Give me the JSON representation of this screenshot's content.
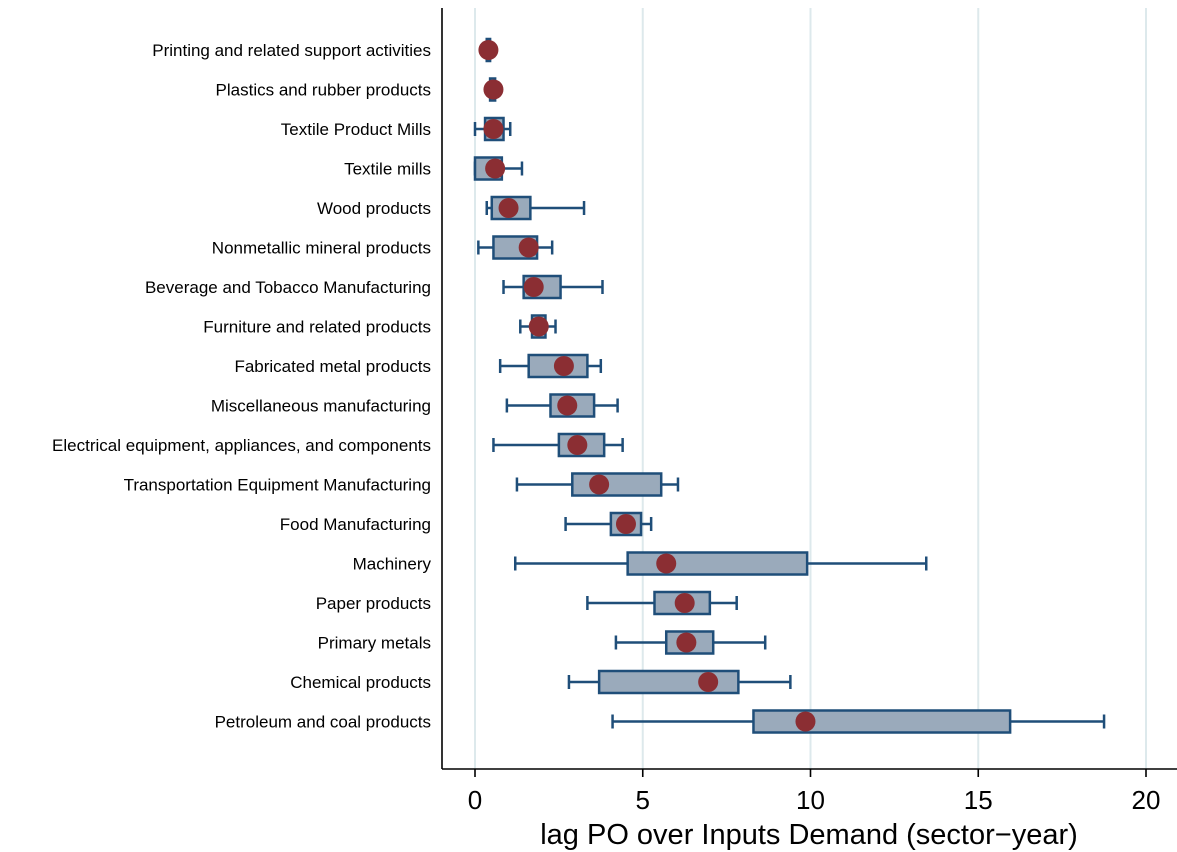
{
  "chart_data": {
    "type": "box",
    "title": "",
    "xlabel": "lag PO over Inputs Demand (sector−year)",
    "ylabel": "",
    "xlim": [
      -1,
      21
    ],
    "xticks": [
      "0",
      "5",
      "10",
      "15",
      "20"
    ],
    "grid": "vertical",
    "legend": "none",
    "colors": {
      "box_fill": "#9aaabb",
      "box_stroke": "#1f4e79",
      "whisker": "#1f4e79",
      "mean_marker": "#8b2e33",
      "grid": "#dde9ec"
    },
    "categories": [
      "Printing and related support activities",
      "Plastics and rubber products",
      "Textile Product Mills",
      "Textile mills",
      "Wood products",
      "Nonmetallic mineral products",
      "Beverage and Tobacco Manufacturing",
      "Furniture and related products",
      "Fabricated metal products",
      "Miscellaneous manufacturing",
      "Electrical equipment, appliances, and components",
      "Transportation Equipment Manufacturing",
      "Food Manufacturing",
      "Machinery",
      "Paper products",
      "Primary metals",
      "Chemical products",
      "Petroleum and coal products"
    ],
    "boxes": [
      {
        "min": 0.3,
        "q1": 0.35,
        "q3": 0.45,
        "max": 0.5,
        "mean": 0.4
      },
      {
        "min": 0.4,
        "q1": 0.45,
        "q3": 0.6,
        "max": 0.65,
        "mean": 0.55
      },
      {
        "min": 0.0,
        "q1": 0.3,
        "q3": 0.85,
        "max": 1.05,
        "mean": 0.55
      },
      {
        "min": 0.0,
        "q1": 0.0,
        "q3": 0.8,
        "max": 1.4,
        "mean": 0.6
      },
      {
        "min": 0.35,
        "q1": 0.5,
        "q3": 1.65,
        "max": 3.25,
        "mean": 1.0
      },
      {
        "min": 0.1,
        "q1": 0.55,
        "q3": 1.85,
        "max": 2.3,
        "mean": 1.6
      },
      {
        "min": 0.85,
        "q1": 1.45,
        "q3": 2.55,
        "max": 3.8,
        "mean": 1.75
      },
      {
        "min": 1.35,
        "q1": 1.7,
        "q3": 2.1,
        "max": 2.4,
        "mean": 1.9
      },
      {
        "min": 0.75,
        "q1": 1.6,
        "q3": 3.35,
        "max": 3.75,
        "mean": 2.65
      },
      {
        "min": 0.95,
        "q1": 2.25,
        "q3": 3.55,
        "max": 4.25,
        "mean": 2.75
      },
      {
        "min": 0.55,
        "q1": 2.5,
        "q3": 3.85,
        "max": 4.4,
        "mean": 3.05
      },
      {
        "min": 1.25,
        "q1": 2.9,
        "q3": 5.55,
        "max": 6.05,
        "mean": 3.7
      },
      {
        "min": 2.7,
        "q1": 4.05,
        "q3": 4.95,
        "max": 5.25,
        "mean": 4.5
      },
      {
        "min": 1.2,
        "q1": 4.55,
        "q3": 9.9,
        "max": 13.45,
        "mean": 5.7
      },
      {
        "min": 3.35,
        "q1": 5.35,
        "q3": 7.0,
        "max": 7.8,
        "mean": 6.25
      },
      {
        "min": 4.2,
        "q1": 5.7,
        "q3": 7.1,
        "max": 8.65,
        "mean": 6.3
      },
      {
        "min": 2.8,
        "q1": 3.7,
        "q3": 7.85,
        "max": 9.4,
        "mean": 6.95
      },
      {
        "min": 4.1,
        "q1": 8.3,
        "q3": 15.95,
        "max": 18.75,
        "mean": 9.85
      }
    ]
  }
}
